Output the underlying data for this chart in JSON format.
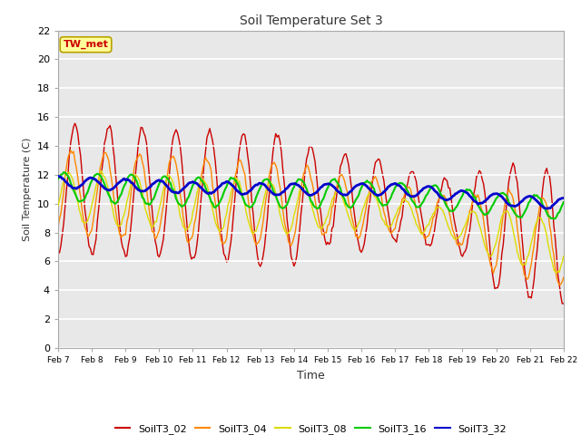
{
  "title": "Soil Temperature Set 3",
  "xlabel": "Time",
  "ylabel": "Soil Temperature (C)",
  "ylim": [
    0,
    22
  ],
  "fig_bg": "#ffffff",
  "plot_bg": "#e8e8e8",
  "annotation_text": "TW_met",
  "annotation_bg": "#ffff99",
  "annotation_border": "#b8a000",
  "annotation_fg": "#cc0000",
  "series_colors": {
    "SoilT3_02": "#cc0000",
    "SoilT3_04": "#ff8800",
    "SoilT3_08": "#dddd00",
    "SoilT3_16": "#00cc00",
    "SoilT3_32": "#0000cc"
  },
  "tick_labels": [
    "Feb 7",
    "Feb 8",
    "Feb 9",
    "Feb 10",
    "Feb 11",
    "Feb 12",
    "Feb 13",
    "Feb 14",
    "Feb 15",
    "Feb 16",
    "Feb 17",
    "Feb 18",
    "Feb 19",
    "Feb 20",
    "Feb 21",
    "Feb 22"
  ],
  "yticks": [
    0,
    2,
    4,
    6,
    8,
    10,
    12,
    14,
    16,
    18,
    20,
    22
  ]
}
